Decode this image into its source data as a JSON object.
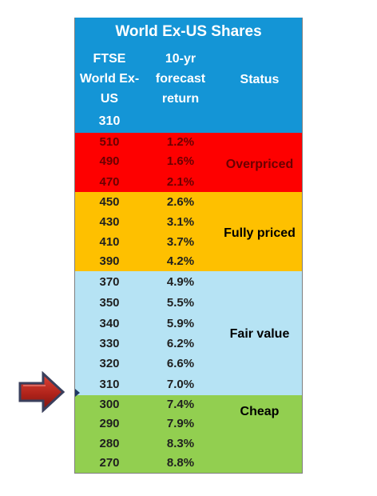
{
  "table": {
    "title": "World Ex-US Shares",
    "col1_header": "FTSE\nWorld Ex-\nUS",
    "col2_header": "10-yr\nforecast\nreturn",
    "col3_header": "Status",
    "current_level": "310"
  },
  "bands": [
    {
      "status": "Overpriced",
      "color": "#fe0000",
      "rows": [
        {
          "level": "510",
          "return": "1.2%"
        },
        {
          "level": "490",
          "return": "1.6%"
        },
        {
          "level": "470",
          "return": "2.1%"
        }
      ]
    },
    {
      "status": "Fully priced",
      "color": "#fec000",
      "rows": [
        {
          "level": "450",
          "return": "2.6%"
        },
        {
          "level": "430",
          "return": "3.1%"
        },
        {
          "level": "410",
          "return": "3.7%"
        },
        {
          "level": "390",
          "return": "4.2%"
        }
      ]
    },
    {
      "status": "Fair value",
      "color": "#b6e3f4",
      "rows": [
        {
          "level": "370",
          "return": "4.9%"
        },
        {
          "level": "350",
          "return": "5.5%"
        },
        {
          "level": "340",
          "return": "5.9%"
        },
        {
          "level": "330",
          "return": "6.2%"
        },
        {
          "level": "320",
          "return": "6.6%"
        },
        {
          "level": "310",
          "return": "7.0%"
        }
      ]
    },
    {
      "status": "Cheap",
      "color": "#92cf50",
      "rows": [
        {
          "level": "300",
          "return": "7.4%"
        },
        {
          "level": "290",
          "return": "7.9%"
        },
        {
          "level": "280",
          "return": "8.3%"
        },
        {
          "level": "270",
          "return": "8.8%"
        }
      ]
    }
  ],
  "indicator": {
    "icon": "right-arrow-icon",
    "color": "#c0291f"
  }
}
